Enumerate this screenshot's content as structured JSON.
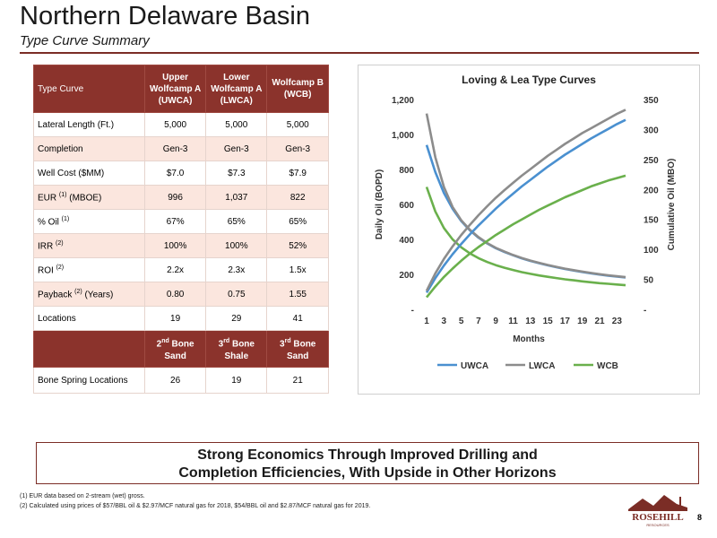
{
  "header": {
    "title": "Northern Delaware Basin",
    "subtitle": "Type Curve Summary"
  },
  "table": {
    "corner_label": "Type Curve",
    "columns": [
      [
        "Upper",
        "Wolfcamp A",
        "(UWCA)"
      ],
      [
        "Lower",
        "Wolfcamp A",
        "(LWCA)"
      ],
      [
        "Wolfcamp B",
        "(WCB)"
      ]
    ],
    "rows": [
      {
        "label": "Lateral Length (Ft.)",
        "values": [
          "5,000",
          "5,000",
          "5,000"
        ]
      },
      {
        "label": "Completion",
        "values": [
          "Gen-3",
          "Gen-3",
          "Gen-3"
        ]
      },
      {
        "label": "Well Cost ($MM)",
        "values": [
          "$7.0",
          "$7.3",
          "$7.9"
        ]
      },
      {
        "label_pre": "EUR ",
        "label_sup": "(1)",
        "label_post": " (MBOE)",
        "values": [
          "996",
          "1,037",
          "822"
        ]
      },
      {
        "label_pre": "% Oil ",
        "label_sup": "(1)",
        "label_post": "",
        "values": [
          "67%",
          "65%",
          "65%"
        ]
      },
      {
        "label_pre": "IRR ",
        "label_sup": "(2)",
        "label_post": "",
        "values": [
          "100%",
          "100%",
          "52%"
        ]
      },
      {
        "label_pre": "ROI ",
        "label_sup": "(2)",
        "label_post": "",
        "values": [
          "2.2x",
          "2.3x",
          "1.5x"
        ]
      },
      {
        "label_pre": "Payback ",
        "label_sup": "(2)",
        "label_post": " (Years)",
        "values": [
          "0.80",
          "0.75",
          "1.55"
        ]
      },
      {
        "label": "Locations",
        "values": [
          "19",
          "29",
          "41"
        ]
      }
    ],
    "bone_headers": [
      {
        "num": "2",
        "ord": "nd",
        "rest": " Bone",
        "line2": "Sand"
      },
      {
        "num": "3",
        "ord": "rd",
        "rest": " Bone",
        "line2": "Shale"
      },
      {
        "num": "3",
        "ord": "rd",
        "rest": " Bone",
        "line2": "Sand"
      }
    ],
    "bone_row": {
      "label": "Bone Spring Locations",
      "values": [
        "26",
        "19",
        "21"
      ]
    }
  },
  "chart_data": {
    "type": "line",
    "title": "Loving & Lea Type Curves",
    "xlabel": "Months",
    "ylabel": "Daily Oil (BOPD)",
    "y2label": "Cumulative Oil (MBO)",
    "x": [
      1,
      2,
      3,
      4,
      5,
      6,
      7,
      8,
      9,
      10,
      11,
      12,
      13,
      14,
      15,
      16,
      17,
      18,
      19,
      20,
      21,
      22,
      23,
      24
    ],
    "xticks": [
      "1",
      "3",
      "5",
      "7",
      "9",
      "11",
      "13",
      "15",
      "17",
      "19",
      "21",
      "23"
    ],
    "ylim": [
      0,
      1200
    ],
    "yticks": [
      "-",
      "200",
      "400",
      "600",
      "800",
      "1,000",
      "1,200"
    ],
    "y2lim": [
      0,
      350
    ],
    "y2ticks": [
      "-",
      "50",
      "100",
      "150",
      "200",
      "250",
      "300",
      "350"
    ],
    "legend_position": "bottom",
    "series": [
      {
        "name": "UWCA",
        "color": "#4a90d0",
        "axis": "left",
        "values": [
          940,
          785,
          665,
          575,
          505,
          452,
          410,
          377,
          350,
          328,
          309,
          292,
          277,
          264,
          252,
          241,
          231,
          222,
          214,
          206,
          199,
          193,
          187,
          182
        ]
      },
      {
        "name": "LWCA",
        "color": "#8c8c8c",
        "axis": "left",
        "values": [
          1120,
          870,
          700,
          585,
          510,
          455,
          413,
          379,
          352,
          330,
          311,
          294,
          279,
          266,
          254,
          243,
          233,
          224,
          216,
          208,
          201,
          195,
          189,
          184
        ]
      },
      {
        "name": "WCB",
        "color": "#6ab04c",
        "axis": "left",
        "values": [
          700,
          560,
          465,
          400,
          355,
          320,
          293,
          271,
          253,
          238,
          225,
          213,
          203,
          194,
          186,
          179,
          172,
          166,
          160,
          155,
          150,
          146,
          142,
          138
        ]
      },
      {
        "name": "UWCA",
        "color": "#4a90d0",
        "axis": "right",
        "legend": false,
        "values": [
          28,
          52,
          73,
          92,
          109,
          125,
          140,
          154,
          168,
          181,
          193,
          205,
          216,
          227,
          238,
          248,
          258,
          267,
          276,
          285,
          293,
          301,
          309,
          316
        ]
      },
      {
        "name": "LWCA",
        "color": "#8c8c8c",
        "axis": "right",
        "legend": false,
        "values": [
          31,
          60,
          84,
          105,
          124,
          141,
          157,
          172,
          186,
          199,
          211,
          223,
          234,
          245,
          256,
          266,
          276,
          285,
          294,
          302,
          310,
          318,
          326,
          333
        ]
      },
      {
        "name": "WCB",
        "color": "#6ab04c",
        "axis": "right",
        "legend": false,
        "values": [
          20,
          38,
          54,
          68,
          81,
          93,
          104,
          114,
          124,
          133,
          142,
          150,
          158,
          166,
          173,
          180,
          187,
          193,
          199,
          205,
          210,
          215,
          219,
          223
        ]
      }
    ]
  },
  "banner": {
    "line1": "Strong Economics Through Improved Drilling and",
    "line2": "Completion Efficiencies, With Upside in Other Horizons"
  },
  "footnotes": [
    "(1) EUR data based on 2-stream (wet) gross.",
    "(2) Calculated using prices of $57/BBL oil & $2.97/MCF natural gas for 2018, $54/BBL oil and $2.87/MCF natural gas for 2019."
  ],
  "logo": {
    "main": "ROSEHILL",
    "sub": "RESOURCES"
  },
  "page_number": "8",
  "colors": {
    "accent": "#8b332c",
    "row_alt": "#fbe6de"
  }
}
